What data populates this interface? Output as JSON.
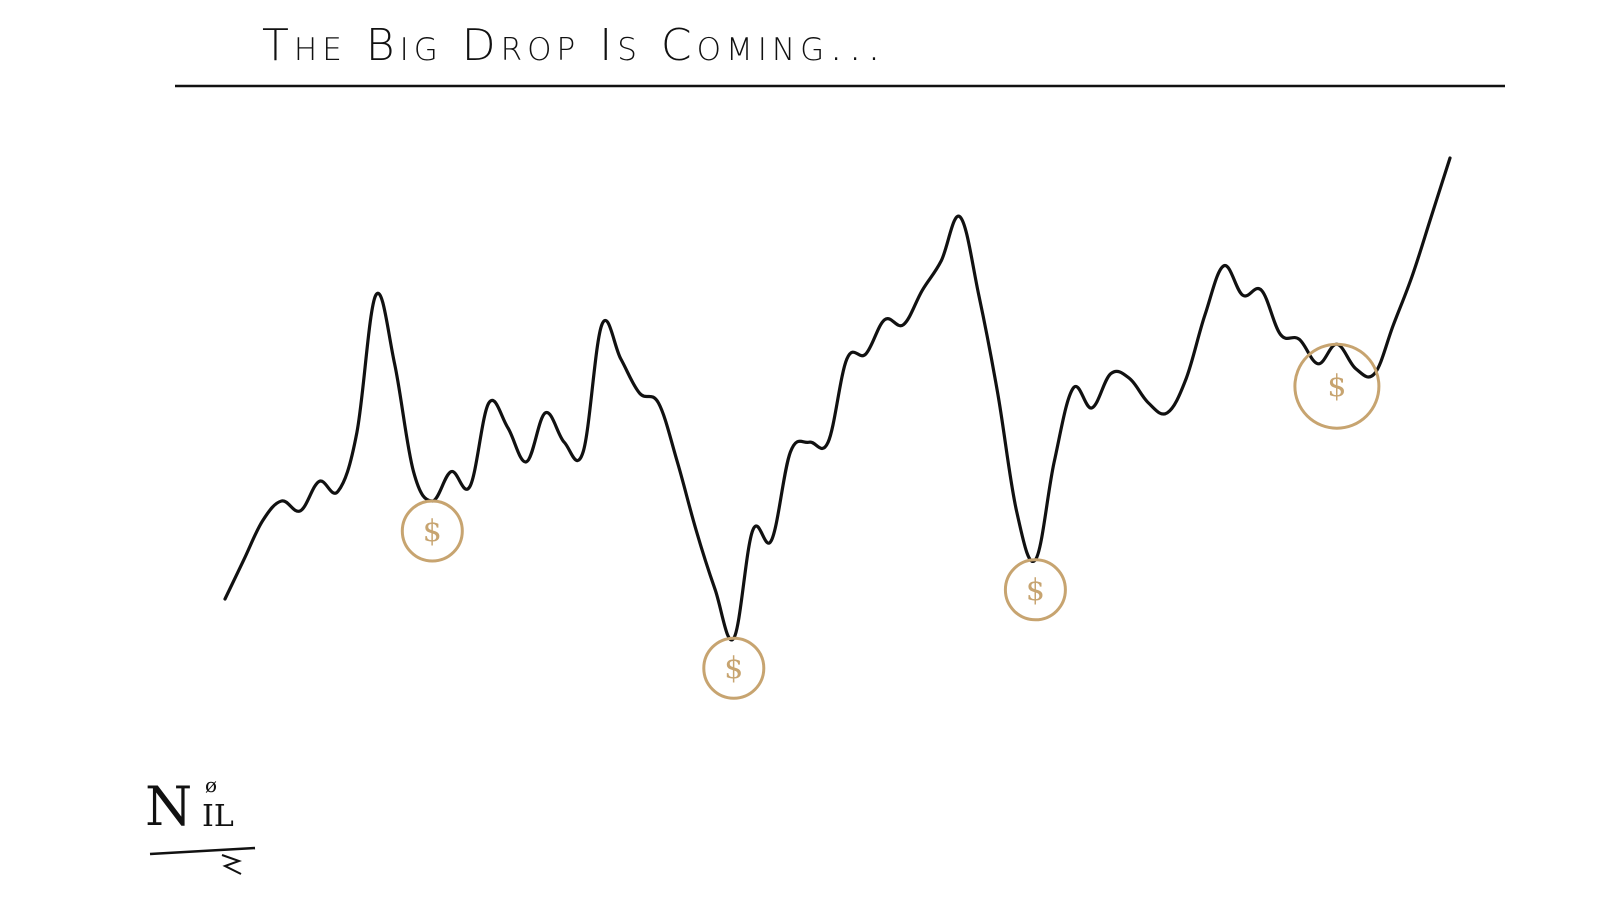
{
  "title": "The Big Drop Is Coming...",
  "signature": {
    "main": "N",
    "sub": "IL",
    "mark": "ø"
  },
  "colors": {
    "ink": "#111111",
    "coin": "#c7a470",
    "background": "#ffffff"
  },
  "chart_data": {
    "type": "line",
    "title": "The Big Drop Is Coming...",
    "xlabel": "",
    "ylabel": "",
    "grid": false,
    "series": [
      {
        "values": [
          10,
          18,
          26,
          30,
          28,
          34,
          32,
          44,
          72,
          58,
          36,
          30,
          36,
          33,
          50,
          45,
          38,
          48,
          42,
          40,
          66,
          59,
          52,
          50,
          38,
          24,
          12,
          2,
          24,
          22,
          40,
          42,
          42,
          59,
          60,
          67,
          66,
          73,
          79,
          88,
          72,
          52,
          28,
          18,
          38,
          53,
          49,
          56,
          55,
          50,
          48,
          55,
          68,
          78,
          72,
          73,
          64,
          63,
          58,
          62,
          57,
          56,
          66,
          76,
          88,
          100
        ]
      }
    ],
    "markers": [
      {
        "index": 11,
        "label": "$"
      },
      {
        "index": 27,
        "label": "$"
      },
      {
        "index": 43,
        "label": "$"
      },
      {
        "index": 59,
        "label": "$"
      }
    ]
  }
}
